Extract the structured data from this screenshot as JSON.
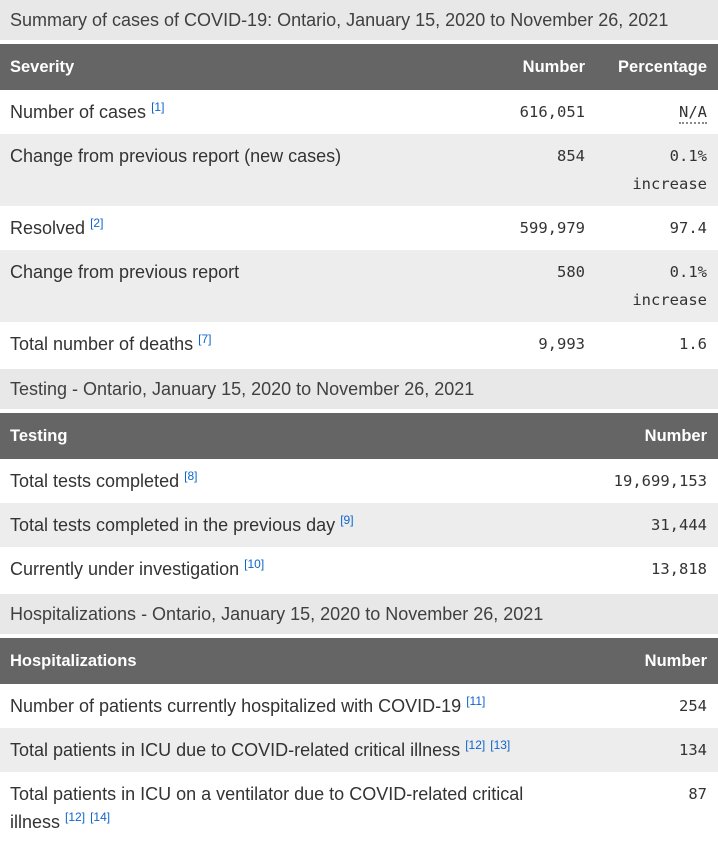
{
  "colors": {
    "header_bg": "#656565",
    "header_text": "#ffffff",
    "caption_bg": "#e8e8e8",
    "stripe_bg": "#ededed",
    "body_text": "#333333",
    "footnote_link": "#0d65cc"
  },
  "tables": [
    {
      "caption": "Summary of cases of COVID-19: Ontario, January 15, 2020 to November 26, 2021",
      "columns": [
        "Severity",
        "Number",
        "Percentage"
      ],
      "rows": [
        {
          "label": "Number of cases",
          "footnotes": [
            "[1]"
          ],
          "number": "616,051",
          "percentage": "N/A"
        },
        {
          "label": "Change from previous report (new cases)",
          "footnotes": [],
          "number": "854",
          "percentage": "0.1% increase"
        },
        {
          "label": "Resolved",
          "footnotes": [
            "[2]"
          ],
          "number": "599,979",
          "percentage": "97.4"
        },
        {
          "label": "Change from previous report",
          "footnotes": [],
          "number": "580",
          "percentage": "0.1% increase"
        },
        {
          "label": "Total number of deaths",
          "footnotes": [
            "[7]"
          ],
          "number": "9,993",
          "percentage": "1.6"
        }
      ]
    },
    {
      "caption": "Testing - Ontario, January 15, 2020 to November 26, 2021",
      "columns": [
        "Testing",
        "Number"
      ],
      "rows": [
        {
          "label": "Total tests completed",
          "footnotes": [
            "[8]"
          ],
          "number": "19,699,153"
        },
        {
          "label": "Total tests completed in the previous day",
          "footnotes": [
            "[9]"
          ],
          "number": "31,444"
        },
        {
          "label": "Currently under investigation",
          "footnotes": [
            "[10]"
          ],
          "number": "13,818"
        }
      ]
    },
    {
      "caption": "Hospitalizations - Ontario, January 15, 2020 to November 26, 2021",
      "columns": [
        "Hospitalizations",
        "Number"
      ],
      "rows": [
        {
          "label": "Number of patients currently hospitalized with COVID-19",
          "footnotes": [
            "[11]"
          ],
          "number": "254"
        },
        {
          "label": "Total patients in ICU due to COVID-related critical illness",
          "footnotes": [
            "[12]",
            "[13]"
          ],
          "number": "134"
        },
        {
          "label": "Total patients in ICU on a ventilator due to COVID-related critical illness",
          "footnotes": [
            "[12]",
            "[14]"
          ],
          "number": "87"
        }
      ]
    }
  ]
}
